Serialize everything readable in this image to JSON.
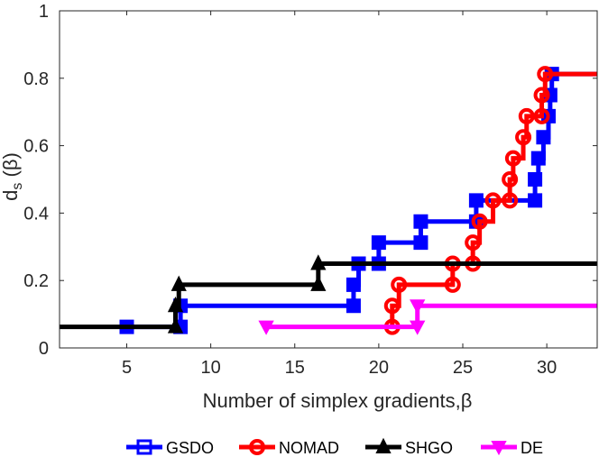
{
  "chart_data": {
    "type": "line",
    "step": true,
    "xlabel": "Number of simplex gradients,β",
    "ylabel_main": "d",
    "ylabel_sub": "s",
    "ylabel_tail": " (β)",
    "xlim": [
      1,
      33
    ],
    "ylim": [
      0,
      1
    ],
    "xticks": [
      5,
      10,
      15,
      20,
      25,
      30
    ],
    "yticks": [
      0,
      0.2,
      0.4,
      0.6,
      0.8,
      1
    ],
    "ytick_labels": [
      "0",
      "0.2",
      "0.4",
      "0.6",
      "0.8",
      "1"
    ],
    "legend_position": "bottom",
    "series": [
      {
        "name": "GSDO",
        "color": "#0000ff",
        "marker": "square",
        "points": [
          [
            5,
            0.0625
          ],
          [
            8.2,
            0.0625
          ],
          [
            8.2,
            0.125
          ],
          [
            18.5,
            0.125
          ],
          [
            18.5,
            0.1875
          ],
          [
            18.8,
            0.25
          ],
          [
            20,
            0.25
          ],
          [
            20,
            0.3125
          ],
          [
            22.5,
            0.3125
          ],
          [
            22.5,
            0.375
          ],
          [
            25.8,
            0.375
          ],
          [
            25.8,
            0.4375
          ],
          [
            29.3,
            0.4375
          ],
          [
            29.3,
            0.5
          ],
          [
            29.5,
            0.5625
          ],
          [
            29.8,
            0.625
          ],
          [
            30.1,
            0.6875
          ],
          [
            30.2,
            0.75
          ],
          [
            30.3,
            0.8125
          ],
          [
            33,
            0.8125
          ]
        ]
      },
      {
        "name": "NOMAD",
        "color": "#ff0000",
        "marker": "circle",
        "points": [
          [
            20.8,
            0.0625
          ],
          [
            20.8,
            0.125
          ],
          [
            21.2,
            0.1875
          ],
          [
            24.4,
            0.1875
          ],
          [
            24.4,
            0.25
          ],
          [
            25.6,
            0.25
          ],
          [
            25.6,
            0.3125
          ],
          [
            26,
            0.375
          ],
          [
            26.8,
            0.4375
          ],
          [
            27.8,
            0.4375
          ],
          [
            27.8,
            0.5
          ],
          [
            28,
            0.5625
          ],
          [
            28.6,
            0.625
          ],
          [
            28.8,
            0.6875
          ],
          [
            29.7,
            0.6875
          ],
          [
            29.7,
            0.75
          ],
          [
            29.9,
            0.8125
          ],
          [
            33,
            0.8125
          ]
        ]
      },
      {
        "name": "SHGO",
        "color": "#000000",
        "marker": "triangle-up",
        "points": [
          [
            1,
            0.0625
          ],
          [
            7.9,
            0.0625
          ],
          [
            7.9,
            0.125
          ],
          [
            8.1,
            0.1875
          ],
          [
            16.4,
            0.1875
          ],
          [
            16.4,
            0.25
          ],
          [
            33,
            0.25
          ]
        ]
      },
      {
        "name": "DE",
        "color": "#ff00ff",
        "marker": "triangle-down",
        "points": [
          [
            13.3,
            0.0625
          ],
          [
            22.3,
            0.0625
          ],
          [
            22.3,
            0.125
          ],
          [
            33,
            0.125
          ]
        ]
      }
    ]
  }
}
